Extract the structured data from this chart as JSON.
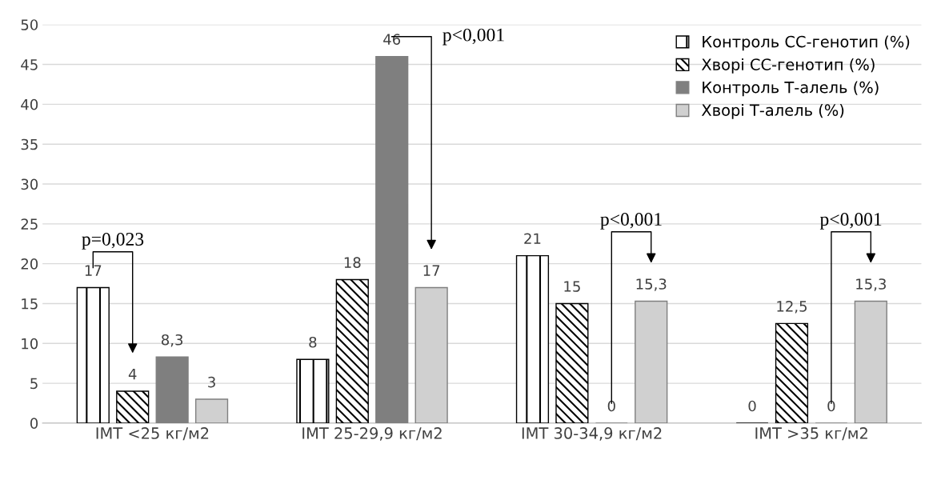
{
  "chart_data": {
    "type": "bar",
    "categories": [
      "IMT <25 кг/м2",
      "IMT 25-29,9 кг/м2",
      "IMT 30-34,9 кг/м2",
      "IMT >35 кг/м2"
    ],
    "series": [
      {
        "name": "Контроль СС-генотип (%)",
        "color": "#000000",
        "values": [
          17,
          8,
          21,
          0
        ],
        "value_labels": [
          "17",
          "8",
          "21",
          "0"
        ]
      },
      {
        "name": "Хворі СС-генотип (%)",
        "color": "#000000",
        "values": [
          4,
          18,
          15,
          12.5
        ],
        "value_labels": [
          "4",
          "18",
          "15",
          "12,5"
        ]
      },
      {
        "name": "Контроль Т-алель (%)",
        "color": "#7f7f7f",
        "values": [
          8.3,
          46,
          0,
          0
        ],
        "value_labels": [
          "8,3",
          "46",
          "0",
          "0"
        ]
      },
      {
        "name": "Хворі Т-алель (%)",
        "color": "#d0d0d0",
        "values": [
          3,
          17,
          15.3,
          15.3
        ],
        "value_labels": [
          "3",
          "17",
          "15,3",
          "15,3"
        ]
      }
    ],
    "ylim": [
      0,
      50
    ],
    "yticks": [
      0,
      5,
      10,
      15,
      20,
      25,
      30,
      35,
      40,
      45,
      50
    ],
    "grid": "y",
    "legend": "top right",
    "annotations": [
      "p=0,023",
      "p<0,001",
      "p<0,001",
      "p<0,001"
    ]
  }
}
